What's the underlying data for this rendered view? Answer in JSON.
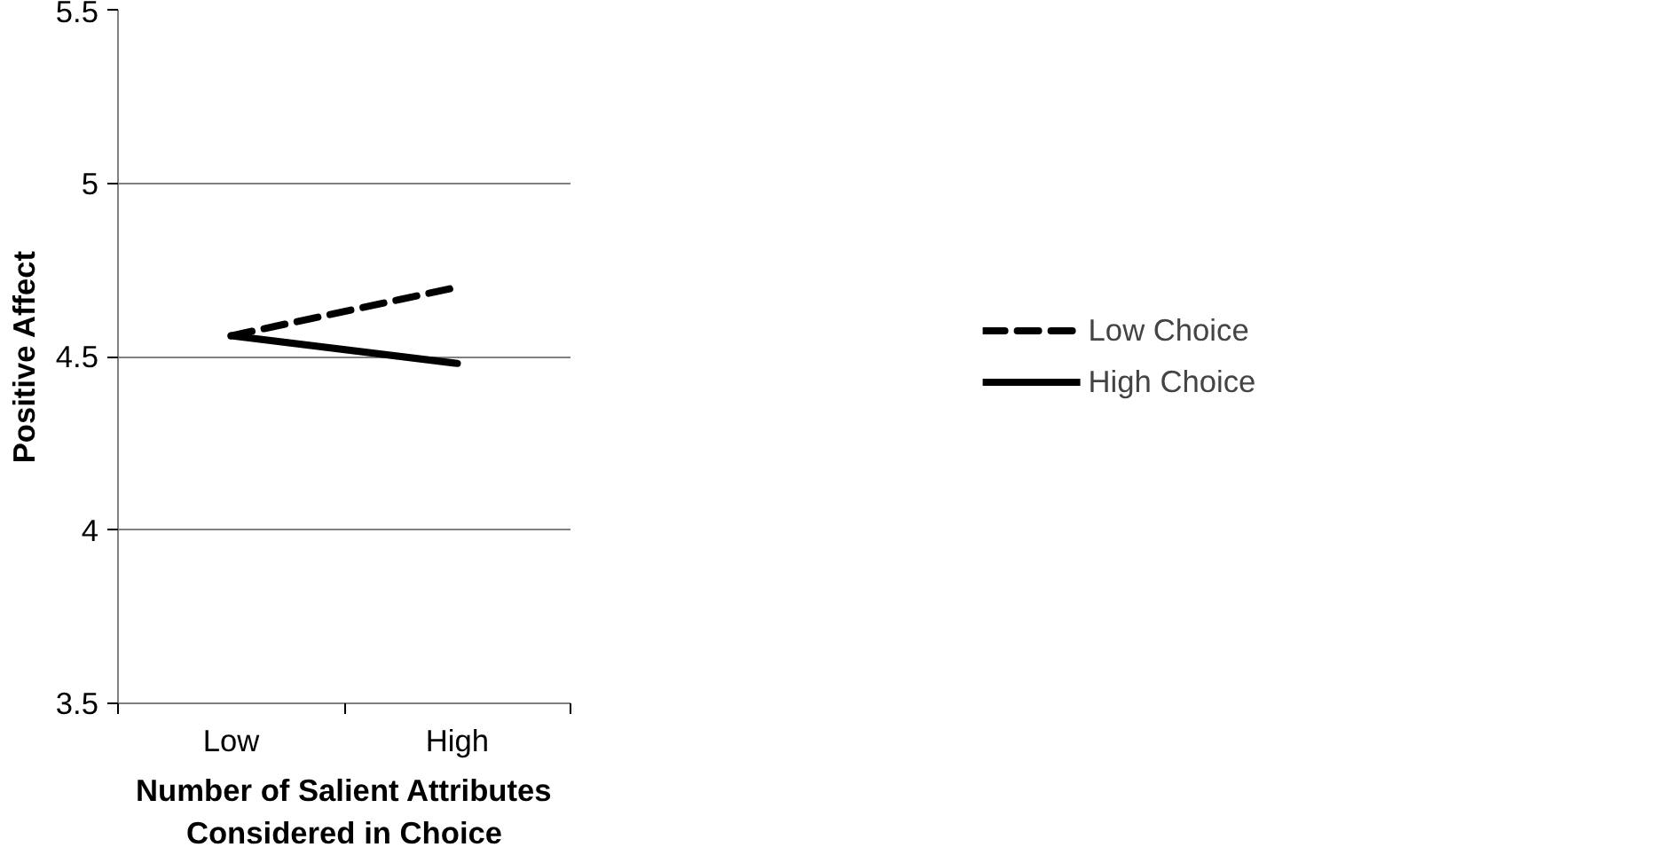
{
  "chart_data": {
    "type": "line",
    "xlabel": "Number of Salient Attributes\nConsidered in Choice",
    "ylabel": "Positive Affect",
    "categories": [
      "Low",
      "High"
    ],
    "series": [
      {
        "name": "Low Choice",
        "color": "#000000",
        "values": [
          4.56,
          4.7
        ],
        "line_style": "dashed"
      },
      {
        "name": "High Choice",
        "color": "#000000",
        "values": [
          4.56,
          4.48
        ],
        "line_style": "solid"
      }
    ],
    "ylim": [
      3.5,
      5.5
    ],
    "yticks": [
      3.5,
      4,
      4.5,
      5,
      5.5
    ],
    "grid": "y",
    "legend": "right",
    "marker": "none"
  }
}
